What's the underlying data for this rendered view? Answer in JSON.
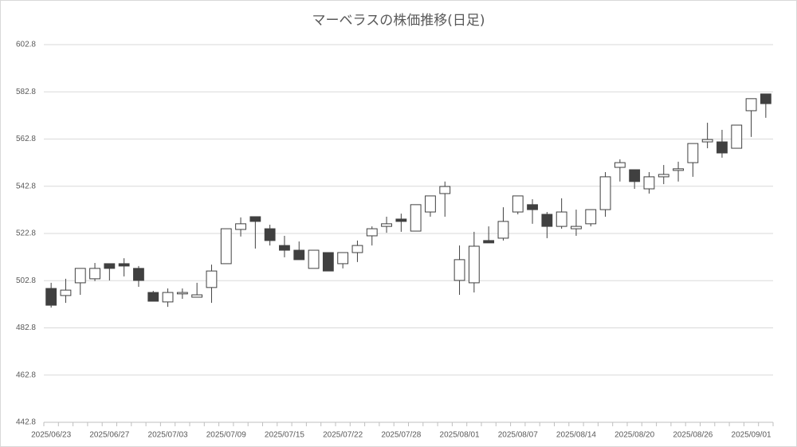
{
  "chart_data": {
    "type": "candlestick",
    "title": "マーベラスの株価推移(日足)",
    "categories": [
      "2025/06/23",
      null,
      null,
      null,
      "2025/06/27",
      null,
      null,
      null,
      "2025/07/03",
      null,
      null,
      null,
      "2025/07/09",
      null,
      null,
      null,
      "2025/07/15",
      null,
      null,
      null,
      "2025/07/22",
      null,
      null,
      null,
      "2025/07/28",
      null,
      null,
      null,
      "2025/08/01",
      null,
      null,
      null,
      "2025/08/07",
      null,
      null,
      null,
      "2025/08/14",
      null,
      null,
      null,
      "2025/08/20",
      null,
      null,
      null,
      "2025/08/26",
      null,
      null,
      null,
      "2025/09/01",
      null
    ],
    "open": [
      499.5,
      496.5,
      501.9,
      503.6,
      510.0,
      510.0,
      508.0,
      497.8,
      493.8,
      497.2,
      495.8,
      499.9,
      510.0,
      524.5,
      529.9,
      524.8,
      517.7,
      515.7,
      508.0,
      514.7,
      510.0,
      514.7,
      521.8,
      525.8,
      528.9,
      523.8,
      531.9,
      539.7,
      502.9,
      501.9,
      519.8,
      520.8,
      531.9,
      535.0,
      530.9,
      525.8,
      524.8,
      526.9,
      532.9,
      550.8,
      549.8,
      541.7,
      546.8,
      549.5,
      552.8,
      561.6,
      561.6,
      558.9,
      574.8,
      581.9
    ],
    "high": [
      501.9,
      503.6,
      508.0,
      510.3,
      510.0,
      512.3,
      509.0,
      498.5,
      499.5,
      499.5,
      501.9,
      509.6,
      524.8,
      529.6,
      529.9,
      526.5,
      521.8,
      519.4,
      515.7,
      514.7,
      514.7,
      519.8,
      525.8,
      529.9,
      531.2,
      535.0,
      538.7,
      544.8,
      517.7,
      523.5,
      525.8,
      533.9,
      538.7,
      537.3,
      531.9,
      537.7,
      532.9,
      532.9,
      548.8,
      554.2,
      549.8,
      548.8,
      551.8,
      553.2,
      560.9,
      569.7,
      566.7,
      568.7,
      579.9,
      581.9
    ],
    "low": [
      491.4,
      493.4,
      496.8,
      502.6,
      502.9,
      504.6,
      500.2,
      494.1,
      491.7,
      495.1,
      495.8,
      493.4,
      510.0,
      521.5,
      516.4,
      517.7,
      512.7,
      511.7,
      508.0,
      506.9,
      508.0,
      510.7,
      517.7,
      523.1,
      523.5,
      523.8,
      529.9,
      529.9,
      496.8,
      497.8,
      518.8,
      519.8,
      530.9,
      526.9,
      520.8,
      524.8,
      521.8,
      525.8,
      529.9,
      544.8,
      541.7,
      539.7,
      543.7,
      544.8,
      546.8,
      558.9,
      554.9,
      558.9,
      563.7,
      571.8
    ],
    "close": [
      492.4,
      498.8,
      508.0,
      508.0,
      508.0,
      509.0,
      502.9,
      494.1,
      497.8,
      497.8,
      496.8,
      506.9,
      524.8,
      526.9,
      527.9,
      519.8,
      515.7,
      511.7,
      515.7,
      506.9,
      514.7,
      517.7,
      524.8,
      526.9,
      527.9,
      535.0,
      538.7,
      542.7,
      511.7,
      517.4,
      518.8,
      527.9,
      538.7,
      532.9,
      525.8,
      531.9,
      525.8,
      532.9,
      546.8,
      552.8,
      544.8,
      546.8,
      547.8,
      550.2,
      560.9,
      562.6,
      556.9,
      568.7,
      579.9,
      577.8
    ],
    "up_color": "#ffffff",
    "down_color": "#404040",
    "edge_color": "#404040",
    "ylim": [
      442.8,
      602.8
    ],
    "yticks": [
      442.8,
      462.8,
      482.8,
      502.8,
      522.8,
      542.8,
      562.8,
      582.8,
      602.8
    ],
    "grid": true
  }
}
